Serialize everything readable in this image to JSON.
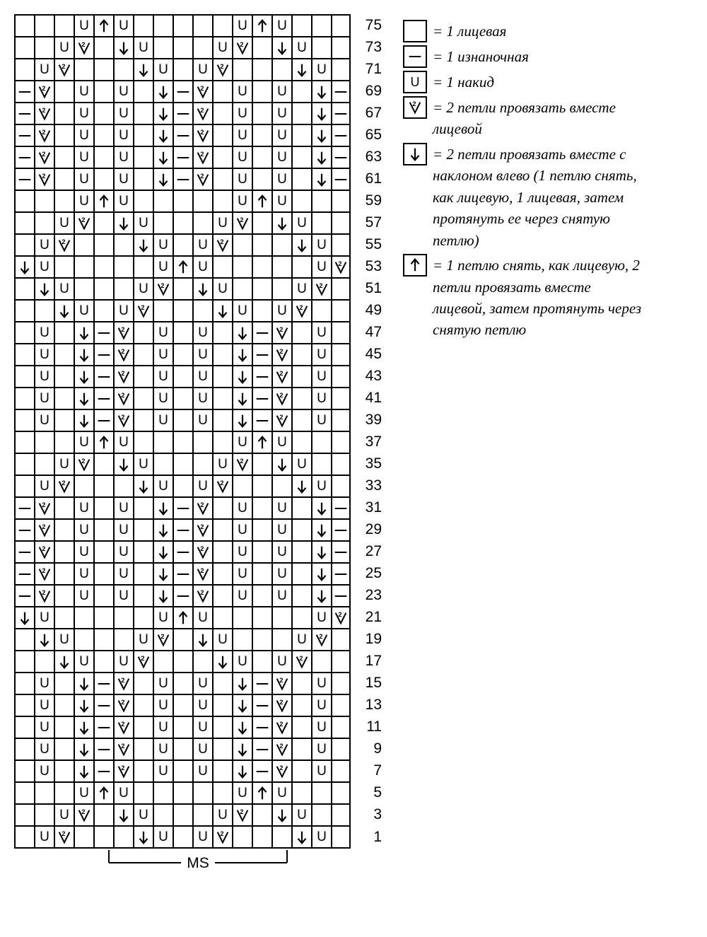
{
  "chart": {
    "cols": 19,
    "repeat_start_col": 5,
    "repeat_end_col": 13,
    "footer_label": "MS",
    "rows": [
      {
        "n": 75,
        "c": [
          "",
          "",
          "",
          "U",
          "A",
          "U",
          "",
          "",
          "",
          "",
          "",
          "U",
          "A",
          "U",
          "",
          "",
          "",
          "",
          ""
        ]
      },
      {
        "n": 73,
        "c": [
          "",
          "",
          "U",
          "V2",
          "",
          "D",
          "U",
          "",
          "",
          "",
          "U",
          "V2",
          "",
          "D",
          "U",
          "",
          "",
          "",
          ""
        ]
      },
      {
        "n": 71,
        "c": [
          "",
          "U",
          "V2",
          "",
          "",
          "",
          "D",
          "U",
          "",
          "U",
          "V2",
          "",
          "",
          "",
          "D",
          "U",
          "",
          "",
          ""
        ]
      },
      {
        "n": 69,
        "c": [
          "P",
          "V2",
          "",
          "U",
          "",
          "U",
          "",
          "D",
          "P",
          "V2",
          "",
          "U",
          "",
          "U",
          "",
          "D",
          "P",
          "",
          ""
        ]
      },
      {
        "n": 67,
        "c": [
          "P",
          "V2",
          "",
          "U",
          "",
          "U",
          "",
          "D",
          "P",
          "V2",
          "",
          "U",
          "",
          "U",
          "",
          "D",
          "P",
          "",
          ""
        ]
      },
      {
        "n": 65,
        "c": [
          "P",
          "V2",
          "",
          "U",
          "",
          "U",
          "",
          "D",
          "P",
          "V2",
          "",
          "U",
          "",
          "U",
          "",
          "D",
          "P",
          "",
          ""
        ]
      },
      {
        "n": 63,
        "c": [
          "P",
          "V2",
          "",
          "U",
          "",
          "U",
          "",
          "D",
          "P",
          "V2",
          "",
          "U",
          "",
          "U",
          "",
          "D",
          "P",
          "",
          ""
        ]
      },
      {
        "n": 61,
        "c": [
          "P",
          "V2",
          "",
          "U",
          "",
          "U",
          "",
          "D",
          "P",
          "V2",
          "",
          "U",
          "",
          "U",
          "",
          "D",
          "P",
          "",
          ""
        ]
      },
      {
        "n": 59,
        "c": [
          "",
          "",
          "",
          "U",
          "A",
          "U",
          "",
          "",
          "",
          "",
          "",
          "U",
          "A",
          "U",
          "",
          "",
          "",
          "",
          ""
        ]
      },
      {
        "n": 57,
        "c": [
          "",
          "",
          "U",
          "V2",
          "",
          "D",
          "U",
          "",
          "",
          "",
          "U",
          "V2",
          "",
          "D",
          "U",
          "",
          "",
          "",
          ""
        ]
      },
      {
        "n": 55,
        "c": [
          "",
          "U",
          "V2",
          "",
          "",
          "",
          "D",
          "U",
          "",
          "U",
          "V2",
          "",
          "",
          "",
          "D",
          "U",
          "",
          "",
          ""
        ]
      },
      {
        "n": 53,
        "c": [
          "D",
          "U",
          "",
          "",
          "",
          "",
          "",
          "U",
          "A",
          "U",
          "",
          "",
          "",
          "",
          "",
          "U",
          "V2",
          "",
          ""
        ]
      },
      {
        "n": 51,
        "c": [
          "",
          "D",
          "U",
          "",
          "",
          "",
          "U",
          "V2",
          "",
          "D",
          "U",
          "",
          "",
          "",
          "U",
          "V2",
          "",
          "",
          ""
        ]
      },
      {
        "n": 49,
        "c": [
          "",
          "",
          "D",
          "U",
          "",
          "U",
          "V2",
          "",
          "",
          "",
          "D",
          "U",
          "",
          "U",
          "V2",
          "",
          "",
          "",
          ""
        ]
      },
      {
        "n": 47,
        "c": [
          "",
          "U",
          "",
          "D",
          "P",
          "V2",
          "",
          "U",
          "",
          "U",
          "",
          "D",
          "P",
          "V2",
          "",
          "U",
          "",
          "",
          ""
        ]
      },
      {
        "n": 45,
        "c": [
          "",
          "U",
          "",
          "D",
          "P",
          "V2",
          "",
          "U",
          "",
          "U",
          "",
          "D",
          "P",
          "V2",
          "",
          "U",
          "",
          "",
          ""
        ]
      },
      {
        "n": 43,
        "c": [
          "",
          "U",
          "",
          "D",
          "P",
          "V2",
          "",
          "U",
          "",
          "U",
          "",
          "D",
          "P",
          "V2",
          "",
          "U",
          "",
          "",
          ""
        ]
      },
      {
        "n": 41,
        "c": [
          "",
          "U",
          "",
          "D",
          "P",
          "V2",
          "",
          "U",
          "",
          "U",
          "",
          "D",
          "P",
          "V2",
          "",
          "U",
          "",
          "",
          ""
        ]
      },
      {
        "n": 39,
        "c": [
          "",
          "U",
          "",
          "D",
          "P",
          "V2",
          "",
          "U",
          "",
          "U",
          "",
          "D",
          "P",
          "V2",
          "",
          "U",
          "",
          "",
          ""
        ]
      },
      {
        "n": 37,
        "c": [
          "",
          "",
          "",
          "U",
          "A",
          "U",
          "",
          "",
          "",
          "",
          "",
          "U",
          "A",
          "U",
          "",
          "",
          "",
          "",
          ""
        ]
      },
      {
        "n": 35,
        "c": [
          "",
          "",
          "U",
          "V2",
          "",
          "D",
          "U",
          "",
          "",
          "",
          "U",
          "V2",
          "",
          "D",
          "U",
          "",
          "",
          "",
          ""
        ]
      },
      {
        "n": 33,
        "c": [
          "",
          "U",
          "V2",
          "",
          "",
          "",
          "D",
          "U",
          "",
          "U",
          "V2",
          "",
          "",
          "",
          "D",
          "U",
          "",
          "",
          ""
        ]
      },
      {
        "n": 31,
        "c": [
          "P",
          "V2",
          "",
          "U",
          "",
          "U",
          "",
          "D",
          "P",
          "V2",
          "",
          "U",
          "",
          "U",
          "",
          "D",
          "P",
          "",
          ""
        ]
      },
      {
        "n": 29,
        "c": [
          "P",
          "V2",
          "",
          "U",
          "",
          "U",
          "",
          "D",
          "P",
          "V2",
          "",
          "U",
          "",
          "U",
          "",
          "D",
          "P",
          "",
          ""
        ]
      },
      {
        "n": 27,
        "c": [
          "P",
          "V2",
          "",
          "U",
          "",
          "U",
          "",
          "D",
          "P",
          "V2",
          "",
          "U",
          "",
          "U",
          "",
          "D",
          "P",
          "",
          ""
        ]
      },
      {
        "n": 25,
        "c": [
          "P",
          "V2",
          "",
          "U",
          "",
          "U",
          "",
          "D",
          "P",
          "V2",
          "",
          "U",
          "",
          "U",
          "",
          "D",
          "P",
          "",
          ""
        ]
      },
      {
        "n": 23,
        "c": [
          "P",
          "V2",
          "",
          "U",
          "",
          "U",
          "",
          "D",
          "P",
          "V2",
          "",
          "U",
          "",
          "U",
          "",
          "D",
          "P",
          "",
          ""
        ]
      },
      {
        "n": 21,
        "c": [
          "D",
          "U",
          "",
          "",
          "",
          "",
          "",
          "U",
          "A",
          "U",
          "",
          "",
          "",
          "",
          "",
          "U",
          "V2",
          "",
          ""
        ]
      },
      {
        "n": 19,
        "c": [
          "",
          "D",
          "U",
          "",
          "",
          "",
          "U",
          "V2",
          "",
          "D",
          "U",
          "",
          "",
          "",
          "U",
          "V2",
          "",
          "",
          ""
        ]
      },
      {
        "n": 17,
        "c": [
          "",
          "",
          "D",
          "U",
          "",
          "U",
          "V2",
          "",
          "",
          "",
          "D",
          "U",
          "",
          "U",
          "V2",
          "",
          "",
          "",
          ""
        ]
      },
      {
        "n": 15,
        "c": [
          "",
          "U",
          "",
          "D",
          "P",
          "V2",
          "",
          "U",
          "",
          "U",
          "",
          "D",
          "P",
          "V2",
          "",
          "U",
          "",
          "",
          ""
        ]
      },
      {
        "n": 13,
        "c": [
          "",
          "U",
          "",
          "D",
          "P",
          "V2",
          "",
          "U",
          "",
          "U",
          "",
          "D",
          "P",
          "V2",
          "",
          "U",
          "",
          "",
          ""
        ]
      },
      {
        "n": 11,
        "c": [
          "",
          "U",
          "",
          "D",
          "P",
          "V2",
          "",
          "U",
          "",
          "U",
          "",
          "D",
          "P",
          "V2",
          "",
          "U",
          "",
          "",
          ""
        ]
      },
      {
        "n": 9,
        "c": [
          "",
          "U",
          "",
          "D",
          "P",
          "V2",
          "",
          "U",
          "",
          "U",
          "",
          "D",
          "P",
          "V2",
          "",
          "U",
          "",
          "",
          ""
        ]
      },
      {
        "n": 7,
        "c": [
          "",
          "U",
          "",
          "D",
          "P",
          "V2",
          "",
          "U",
          "",
          "U",
          "",
          "D",
          "P",
          "V2",
          "",
          "U",
          "",
          "",
          ""
        ]
      },
      {
        "n": 5,
        "c": [
          "",
          "",
          "",
          "U",
          "A",
          "U",
          "",
          "",
          "",
          "",
          "",
          "U",
          "A",
          "U",
          "",
          "",
          "",
          "",
          ""
        ]
      },
      {
        "n": 3,
        "c": [
          "",
          "",
          "U",
          "V2",
          "",
          "D",
          "U",
          "",
          "",
          "",
          "U",
          "V2",
          "",
          "D",
          "U",
          "",
          "",
          "",
          ""
        ]
      },
      {
        "n": 1,
        "c": [
          "",
          "U",
          "V2",
          "",
          "",
          "",
          "D",
          "U",
          "",
          "U",
          "V2",
          "",
          "",
          "",
          "D",
          "U",
          "",
          "",
          ""
        ]
      }
    ]
  },
  "legend": [
    {
      "sym": "",
      "text": "= 1 лицевая"
    },
    {
      "sym": "P",
      "text": "= 1 изнаночная"
    },
    {
      "sym": "U",
      "text": "= 1 накид"
    },
    {
      "sym": "V2",
      "text": "= 2 петли провязать вместе лицевой"
    },
    {
      "sym": "D",
      "text": "= 2 петли провязать вместе с наклоном влево (1 петлю снять, как лицевую, 1 лицевая, затем протянуть ее через снятую петлю)"
    },
    {
      "sym": "A",
      "text": "= 1 петлю снять, как лицевую, 2 петли провязать вместе лицевой, затем протянуть через снятую петлю"
    }
  ],
  "colors": {
    "stroke": "#000",
    "bg": "#fff"
  }
}
